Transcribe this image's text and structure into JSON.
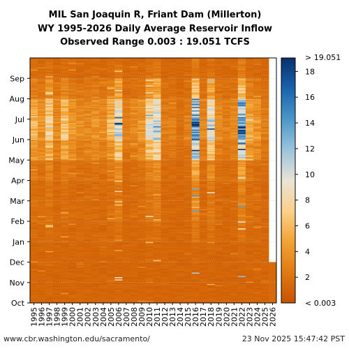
{
  "chart_data": {
    "type": "heatmap",
    "title_lines": [
      "MIL San Joaquin R, Friant Dam (Millerton)",
      "WY 1995-2026 Daily Average Reservoir Inflow",
      "Observed Range 0.003 : 19.051 TCFS"
    ],
    "x_categories": [
      "1995",
      "1996",
      "1997",
      "1998",
      "1999",
      "2000",
      "2001",
      "2002",
      "2003",
      "2004",
      "2005",
      "2006",
      "2007",
      "2008",
      "2009",
      "2010",
      "2011",
      "2012",
      "2013",
      "2014",
      "2015",
      "2016",
      "2017",
      "2018",
      "2019",
      "2020",
      "2021",
      "2022",
      "2023",
      "2024",
      "2025",
      "2026"
    ],
    "y_categories": [
      "Oct",
      "Nov",
      "Dec",
      "Jan",
      "Feb",
      "Mar",
      "Apr",
      "May",
      "Jun",
      "Jul",
      "Aug",
      "Sep"
    ],
    "colorbar": {
      "min": 0.003,
      "max": 19.051,
      "ticks": [
        2,
        4,
        6,
        8,
        10,
        12,
        14,
        16,
        18
      ],
      "min_label": "< 0.003",
      "max_label": "> 19.051",
      "colors": [
        "#c85200",
        "#e07a12",
        "#f2a333",
        "#fbd089",
        "#e9e4d6",
        "#9cc3dc",
        "#4b97c9",
        "#1a62ad",
        "#08306b"
      ]
    },
    "peak_month_approx_tcfs": [
      6,
      4,
      9,
      3,
      7,
      4,
      3,
      3,
      4,
      3,
      6,
      12,
      2,
      3,
      4,
      10,
      13,
      2,
      2,
      1,
      2,
      19,
      3,
      12,
      3,
      2,
      3,
      18,
      5,
      4,
      2
    ],
    "partial_year": "2026",
    "partial_year_months": [
      "Oct",
      "Nov"
    ],
    "partial_year_values_tcfs": [
      1.5,
      1.5
    ]
  },
  "footer": {
    "left": "www.cbr.washington.edu/sacramento/",
    "right": "23 Nov 2025 15:47:42 PST"
  }
}
